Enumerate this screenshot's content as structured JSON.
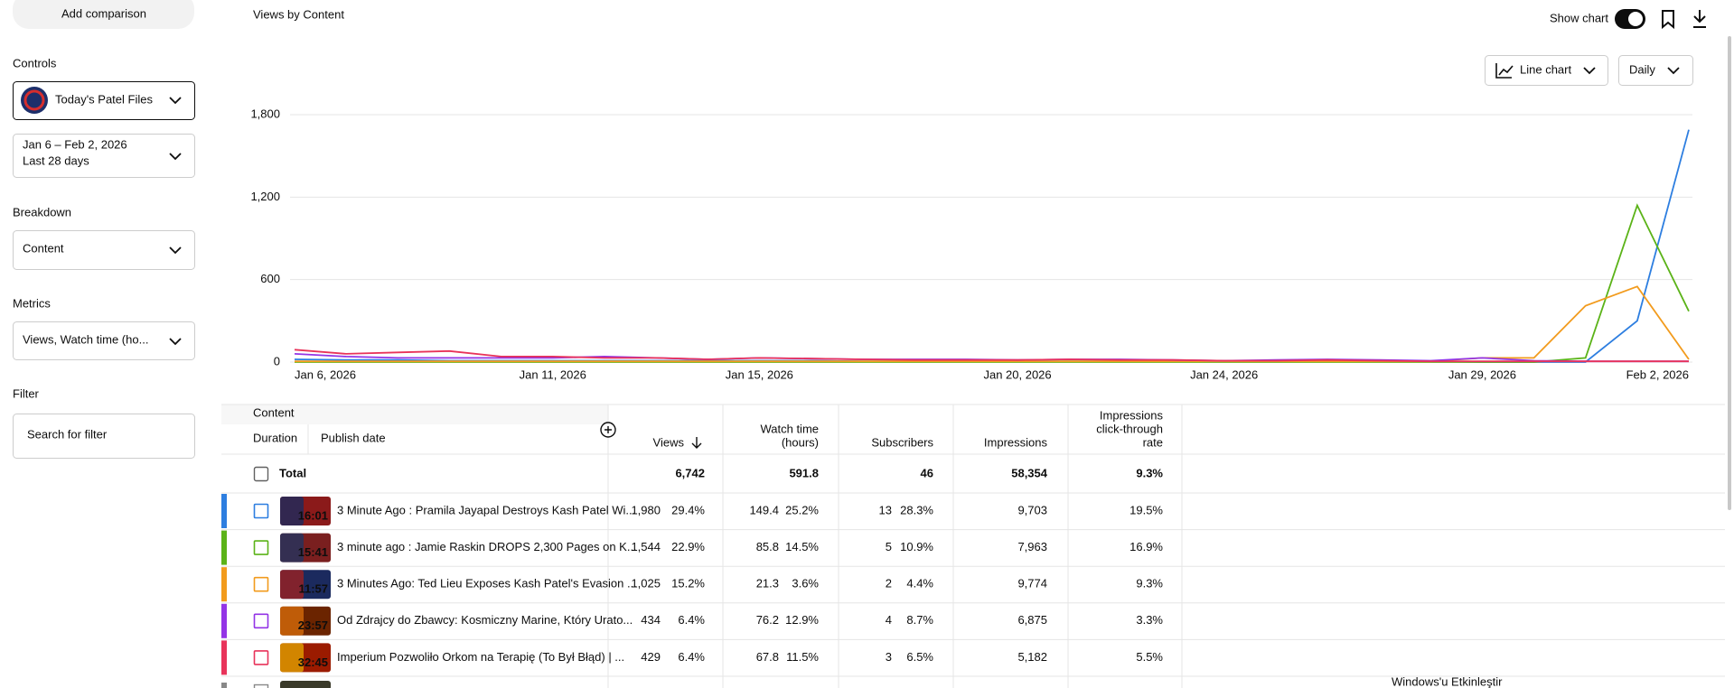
{
  "sidebar": {
    "add_comparison": "Add comparison",
    "controls_label": "Controls",
    "channel": "Today's Patel Files",
    "date_range": "Jan 6 – Feb 2, 2026",
    "period": "Last 28 days",
    "breakdown_label": "Breakdown",
    "breakdown": "Content",
    "metrics_label": "Metrics",
    "metrics": "Views, Watch time (ho...",
    "filter_label": "Filter",
    "filter_placeholder": "Search for filter"
  },
  "toolbar": {
    "show_chart": "Show chart",
    "chart_type": "Line chart",
    "interval": "Daily"
  },
  "chart_data": {
    "type": "line",
    "title": "Views by Content",
    "categories": [
      "Jan 6, 2026",
      null,
      null,
      null,
      null,
      "Jan 11, 2026",
      null,
      null,
      null,
      "Jan 15, 2026",
      null,
      null,
      null,
      null,
      "Jan 20, 2026",
      null,
      null,
      null,
      "Jan 24, 2026",
      null,
      null,
      null,
      null,
      "Jan 29, 2026",
      null,
      null,
      null,
      "Feb 2, 2026"
    ],
    "series": [
      {
        "color": "#2d7ee0",
        "values": [
          20,
          15,
          15,
          10,
          10,
          10,
          10,
          10,
          10,
          10,
          10,
          5,
          5,
          5,
          5,
          5,
          5,
          5,
          5,
          5,
          5,
          5,
          5,
          0,
          0,
          0,
          300,
          1690
        ]
      },
      {
        "color": "#5bb318",
        "values": [
          0,
          0,
          0,
          0,
          0,
          0,
          0,
          0,
          0,
          0,
          0,
          0,
          0,
          0,
          0,
          0,
          0,
          0,
          0,
          0,
          0,
          0,
          0,
          0,
          0,
          30,
          1140,
          370
        ]
      },
      {
        "color": "#f29b1d",
        "values": [
          5,
          5,
          5,
          5,
          5,
          5,
          5,
          5,
          5,
          5,
          5,
          5,
          5,
          5,
          5,
          5,
          5,
          5,
          5,
          5,
          5,
          5,
          5,
          30,
          30,
          410,
          550,
          20
        ]
      },
      {
        "color": "#9334e6",
        "values": [
          60,
          40,
          30,
          30,
          30,
          30,
          40,
          30,
          20,
          30,
          25,
          20,
          20,
          20,
          15,
          20,
          20,
          15,
          10,
          15,
          20,
          15,
          10,
          30,
          10,
          5,
          5,
          5
        ]
      },
      {
        "color": "#e8335a",
        "values": [
          90,
          60,
          70,
          80,
          40,
          40,
          30,
          30,
          20,
          30,
          25,
          20,
          15,
          15,
          15,
          20,
          15,
          15,
          10,
          10,
          15,
          10,
          5,
          5,
          5,
          5,
          5,
          5
        ]
      }
    ],
    "ylim": [
      0,
      1800
    ],
    "yticks": [
      0,
      600,
      {
        "value": 1200,
        "label": "1,200"
      },
      {
        "value": 1800,
        "label": "1,800"
      }
    ],
    "grid": true
  },
  "table": {
    "headers": {
      "content": "Content",
      "duration": "Duration",
      "publish_date": "Publish date",
      "views": "Views",
      "watch_time": [
        "Watch time",
        "(hours)"
      ],
      "subscribers": "Subscribers",
      "impressions": "Impressions",
      "ctr": [
        "Impressions",
        "click-through",
        "rate"
      ]
    },
    "total": {
      "label": "Total",
      "views": "6,742",
      "watch_time": "591.8",
      "subscribers": "46",
      "impressions": "58,354",
      "ctr": "9.3%"
    },
    "rows": [
      {
        "duration": "16:01",
        "title": "3 Minute Ago : Pramila Jayapal Destroys Kash Patel Wi...",
        "views": "1,980",
        "views_pct": "29.4%",
        "watch_time": "149.4",
        "watch_pct": "25.2%",
        "subscribers": "13",
        "subs_pct": "28.3%",
        "impressions": "9,703",
        "ctr": "19.5%"
      },
      {
        "duration": "15:41",
        "title": "3 minute ago : Jamie Raskin DROPS 2,300 Pages on K...",
        "views": "1,544",
        "views_pct": "22.9%",
        "watch_time": "85.8",
        "watch_pct": "14.5%",
        "subscribers": "5",
        "subs_pct": "10.9%",
        "impressions": "7,963",
        "ctr": "16.9%"
      },
      {
        "duration": "11:57",
        "title": "3 Minutes Ago: Ted Lieu Exposes Kash Patel's Evasion ...",
        "views": "1,025",
        "views_pct": "15.2%",
        "watch_time": "21.3",
        "watch_pct": "3.6%",
        "subscribers": "2",
        "subs_pct": "4.4%",
        "impressions": "9,774",
        "ctr": "9.3%"
      },
      {
        "duration": "23:57",
        "title": "Od Zdrajcy do Zbawcy: Kosmiczny Marine, Który Urato...",
        "views": "434",
        "views_pct": "6.4%",
        "watch_time": "76.2",
        "watch_pct": "12.9%",
        "subscribers": "4",
        "subs_pct": "8.7%",
        "impressions": "6,875",
        "ctr": "3.3%"
      },
      {
        "duration": "32:45",
        "title": "Imperium Pozwoliło Orkom na Terapię (To Był Błąd) | ...",
        "views": "429",
        "views_pct": "6.4%",
        "watch_time": "67.8",
        "watch_pct": "11.5%",
        "subscribers": "3",
        "subs_pct": "6.5%",
        "impressions": "5,182",
        "ctr": "5.5%"
      }
    ]
  },
  "watermark": "Windows'u Etkinleştir"
}
